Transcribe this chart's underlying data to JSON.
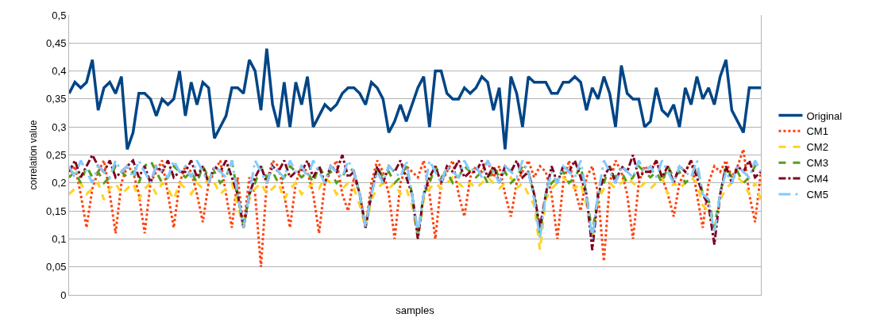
{
  "chart_data": {
    "type": "line",
    "xlabel": "samples",
    "ylabel": "correlation value",
    "categories": [
      null,
      null,
      null,
      null,
      null,
      null,
      null,
      null,
      null,
      null,
      null,
      null,
      null,
      null,
      null,
      null,
      null,
      null,
      null,
      null,
      null,
      null,
      null,
      null,
      null,
      null,
      null,
      null,
      null,
      null,
      null,
      null,
      null,
      null,
      null,
      null,
      null,
      null,
      null,
      null,
      null,
      null,
      null,
      null,
      null,
      null,
      null,
      null,
      null,
      null,
      null,
      null,
      null,
      null,
      null,
      null,
      null,
      null,
      null,
      null,
      null,
      null,
      null,
      null,
      null,
      null,
      null,
      null,
      null,
      null,
      null,
      null,
      null,
      null,
      null,
      null,
      null,
      null,
      null,
      null,
      null,
      null,
      null,
      null,
      null,
      null,
      null,
      null,
      null,
      null,
      null,
      null,
      null,
      null,
      null,
      null,
      null,
      null,
      null,
      null,
      null,
      null,
      null,
      null,
      null,
      null,
      null,
      null,
      null,
      null,
      null,
      null,
      null,
      null,
      null,
      null,
      null,
      null,
      null,
      null
    ],
    "ylim": [
      0,
      0.5
    ],
    "yticks": [
      0,
      {
        "value": 0.05,
        "label": "0,05"
      },
      {
        "value": 0.1,
        "label": "0,1"
      },
      {
        "value": 0.15,
        "label": "0,15"
      },
      {
        "value": 0.2,
        "label": "0,2"
      },
      {
        "value": 0.25,
        "label": "0,25"
      },
      {
        "value": 0.3,
        "label": "0,3"
      },
      {
        "value": 0.35,
        "label": "0,35"
      },
      {
        "value": 0.4,
        "label": "0,4"
      },
      {
        "value": 0.45,
        "label": "0,45"
      },
      {
        "value": 0.5,
        "label": "0,5"
      }
    ],
    "grid": "y",
    "legend": "right",
    "marker": "none",
    "series": [
      {
        "name": "Original",
        "color": "#004586",
        "line_style": "solid",
        "values": [
          0.36,
          0.38,
          0.37,
          0.38,
          0.42,
          0.33,
          0.37,
          0.38,
          0.36,
          0.39,
          0.26,
          0.29,
          0.36,
          0.36,
          0.35,
          0.32,
          0.35,
          0.34,
          0.35,
          0.4,
          0.32,
          0.38,
          0.34,
          0.38,
          0.37,
          0.28,
          0.3,
          0.32,
          0.37,
          0.37,
          0.36,
          0.42,
          0.4,
          0.33,
          0.44,
          0.34,
          0.3,
          0.38,
          0.3,
          0.38,
          0.34,
          0.39,
          0.3,
          0.32,
          0.34,
          0.33,
          0.34,
          0.36,
          0.37,
          0.37,
          0.36,
          0.34,
          0.38,
          0.37,
          0.35,
          0.29,
          0.31,
          0.34,
          0.31,
          0.34,
          0.37,
          0.39,
          0.3,
          0.4,
          0.4,
          0.36,
          0.35,
          0.35,
          0.37,
          0.36,
          0.37,
          0.39,
          0.38,
          0.33,
          0.37,
          0.26,
          0.39,
          0.36,
          0.3,
          0.39,
          0.38,
          0.38,
          0.38,
          0.36,
          0.36,
          0.38,
          0.38,
          0.39,
          0.38,
          0.33,
          0.37,
          0.35,
          0.39,
          0.36,
          0.3,
          0.41,
          0.36,
          0.35,
          0.35,
          0.3,
          0.31,
          0.37,
          0.33,
          0.32,
          0.34,
          0.3,
          0.37,
          0.34,
          0.39,
          0.35,
          0.37,
          0.34,
          0.39,
          0.42,
          0.33,
          0.31,
          0.29,
          0.37,
          0.37,
          0.37
        ]
      },
      {
        "name": "CM1",
        "color": "#ff420e",
        "line_style": "dotted",
        "values": [
          0.21,
          0.23,
          0.18,
          0.12,
          0.19,
          0.22,
          0.24,
          0.18,
          0.11,
          0.2,
          0.23,
          0.22,
          0.18,
          0.11,
          0.2,
          0.22,
          0.24,
          0.18,
          0.12,
          0.2,
          0.23,
          0.22,
          0.18,
          0.13,
          0.2,
          0.22,
          0.24,
          0.18,
          0.12,
          0.21,
          0.12,
          0.21,
          0.18,
          0.05,
          0.2,
          0.24,
          0.23,
          0.18,
          0.12,
          0.2,
          0.23,
          0.22,
          0.18,
          0.11,
          0.2,
          0.22,
          0.24,
          0.18,
          0.15,
          0.21,
          0.18,
          0.12,
          0.2,
          0.24,
          0.22,
          0.18,
          0.1,
          0.2,
          0.23,
          0.22,
          0.21,
          0.24,
          0.18,
          0.1,
          0.2,
          0.22,
          0.24,
          0.18,
          0.14,
          0.21,
          0.23,
          0.22,
          0.24,
          0.21,
          0.23,
          0.18,
          0.14,
          0.2,
          0.22,
          0.24,
          0.21,
          0.23,
          0.22,
          0.18,
          0.1,
          0.2,
          0.24,
          0.19,
          0.15,
          0.21,
          0.23,
          0.18,
          0.06,
          0.2,
          0.24,
          0.22,
          0.18,
          0.1,
          0.2,
          0.23,
          0.22,
          0.24,
          0.21,
          0.18,
          0.14,
          0.2,
          0.22,
          0.24,
          0.18,
          0.12,
          0.2,
          0.23,
          0.22,
          0.24,
          0.21,
          0.23,
          0.26,
          0.18,
          0.13,
          0.22
        ]
      },
      {
        "name": "CM2",
        "color": "#ffd320",
        "line_style": "dashed",
        "values": [
          0.18,
          0.19,
          0.2,
          0.18,
          0.19,
          0.2,
          0.17,
          0.19,
          0.2,
          0.18,
          0.19,
          0.2,
          0.17,
          0.19,
          0.2,
          0.18,
          0.2,
          0.19,
          0.17,
          0.2,
          0.19,
          0.18,
          0.2,
          0.19,
          0.21,
          0.2,
          0.18,
          0.19,
          0.2,
          0.16,
          0.12,
          0.17,
          0.19,
          0.2,
          0.18,
          0.19,
          0.2,
          0.17,
          0.19,
          0.2,
          0.18,
          0.19,
          0.2,
          0.19,
          0.21,
          0.2,
          0.18,
          0.19,
          0.2,
          0.19,
          0.16,
          0.12,
          0.17,
          0.19,
          0.2,
          0.19,
          0.2,
          0.18,
          0.19,
          0.16,
          0.1,
          0.17,
          0.19,
          0.2,
          0.19,
          0.2,
          0.21,
          0.2,
          0.19,
          0.2,
          0.19,
          0.2,
          0.21,
          0.2,
          0.19,
          0.2,
          0.21,
          0.19,
          0.2,
          0.18,
          0.16,
          0.08,
          0.17,
          0.19,
          0.2,
          0.21,
          0.2,
          0.19,
          0.2,
          0.16,
          0.1,
          0.17,
          0.19,
          0.2,
          0.19,
          0.2,
          0.21,
          0.2,
          0.19,
          0.2,
          0.19,
          0.2,
          0.21,
          0.18,
          0.2,
          0.19,
          0.2,
          0.21,
          0.2,
          0.16,
          0.15,
          0.12,
          0.17,
          0.19,
          0.2,
          0.21,
          0.2,
          0.18,
          0.2,
          0.17
        ]
      },
      {
        "name": "CM3",
        "color": "#579d1c",
        "line_style": "dashed",
        "values": [
          0.21,
          0.22,
          0.2,
          0.23,
          0.21,
          0.22,
          0.2,
          0.21,
          0.23,
          0.22,
          0.21,
          0.22,
          0.2,
          0.23,
          0.24,
          0.22,
          0.2,
          0.21,
          0.23,
          0.22,
          0.21,
          0.22,
          0.2,
          0.23,
          0.21,
          0.22,
          0.2,
          0.21,
          0.24,
          0.18,
          0.12,
          0.18,
          0.2,
          0.23,
          0.21,
          0.22,
          0.2,
          0.21,
          0.23,
          0.22,
          0.21,
          0.22,
          0.2,
          0.23,
          0.21,
          0.22,
          0.2,
          0.21,
          0.23,
          0.22,
          0.18,
          0.12,
          0.18,
          0.23,
          0.21,
          0.22,
          0.2,
          0.21,
          0.23,
          0.18,
          0.11,
          0.18,
          0.2,
          0.23,
          0.21,
          0.22,
          0.2,
          0.21,
          0.23,
          0.22,
          0.21,
          0.22,
          0.2,
          0.23,
          0.21,
          0.22,
          0.2,
          0.21,
          0.23,
          0.22,
          0.18,
          0.11,
          0.18,
          0.2,
          0.21,
          0.22,
          0.2,
          0.21,
          0.23,
          0.18,
          0.11,
          0.18,
          0.2,
          0.23,
          0.21,
          0.22,
          0.2,
          0.21,
          0.23,
          0.22,
          0.21,
          0.22,
          0.2,
          0.23,
          0.21,
          0.22,
          0.2,
          0.21,
          0.23,
          0.18,
          0.17,
          0.12,
          0.18,
          0.23,
          0.21,
          0.22,
          0.2,
          0.21,
          0.23,
          0.22
        ]
      },
      {
        "name": "CM4",
        "color": "#7e0021",
        "line_style": "dashed",
        "values": [
          0.22,
          0.24,
          0.21,
          0.23,
          0.25,
          0.23,
          0.22,
          0.24,
          0.21,
          0.22,
          0.23,
          0.24,
          0.21,
          0.23,
          0.2,
          0.23,
          0.22,
          0.24,
          0.21,
          0.22,
          0.22,
          0.24,
          0.21,
          0.23,
          0.2,
          0.23,
          0.22,
          0.24,
          0.21,
          0.18,
          0.12,
          0.18,
          0.21,
          0.23,
          0.2,
          0.23,
          0.22,
          0.24,
          0.21,
          0.22,
          0.22,
          0.24,
          0.21,
          0.23,
          0.2,
          0.23,
          0.22,
          0.25,
          0.21,
          0.22,
          0.18,
          0.12,
          0.18,
          0.23,
          0.2,
          0.23,
          0.22,
          0.24,
          0.21,
          0.18,
          0.1,
          0.18,
          0.21,
          0.23,
          0.2,
          0.23,
          0.22,
          0.24,
          0.21,
          0.22,
          0.22,
          0.24,
          0.21,
          0.23,
          0.2,
          0.23,
          0.22,
          0.24,
          0.21,
          0.22,
          0.18,
          0.12,
          0.18,
          0.23,
          0.2,
          0.23,
          0.22,
          0.24,
          0.21,
          0.18,
          0.08,
          0.18,
          0.21,
          0.23,
          0.2,
          0.23,
          0.22,
          0.25,
          0.21,
          0.22,
          0.22,
          0.24,
          0.21,
          0.23,
          0.2,
          0.23,
          0.22,
          0.24,
          0.21,
          0.18,
          0.16,
          0.09,
          0.18,
          0.23,
          0.2,
          0.23,
          0.22,
          0.24,
          0.21,
          0.22
        ]
      },
      {
        "name": "CM5",
        "color": "#83caff",
        "line_style": "dashed",
        "values": [
          0.23,
          0.21,
          0.24,
          0.22,
          0.2,
          0.23,
          0.22,
          0.21,
          0.24,
          0.22,
          0.23,
          0.21,
          0.24,
          0.22,
          0.2,
          0.23,
          0.22,
          0.21,
          0.24,
          0.22,
          0.23,
          0.21,
          0.24,
          0.22,
          0.2,
          0.23,
          0.22,
          0.21,
          0.24,
          0.18,
          0.12,
          0.18,
          0.24,
          0.22,
          0.2,
          0.23,
          0.22,
          0.21,
          0.24,
          0.22,
          0.23,
          0.21,
          0.24,
          0.22,
          0.2,
          0.23,
          0.22,
          0.21,
          0.24,
          0.22,
          0.18,
          0.12,
          0.18,
          0.22,
          0.2,
          0.23,
          0.22,
          0.21,
          0.24,
          0.18,
          0.11,
          0.18,
          0.24,
          0.22,
          0.2,
          0.23,
          0.22,
          0.21,
          0.24,
          0.22,
          0.23,
          0.21,
          0.24,
          0.22,
          0.2,
          0.23,
          0.22,
          0.21,
          0.24,
          0.22,
          0.17,
          0.1,
          0.18,
          0.22,
          0.2,
          0.23,
          0.22,
          0.21,
          0.24,
          0.18,
          0.1,
          0.18,
          0.24,
          0.22,
          0.2,
          0.23,
          0.22,
          0.21,
          0.24,
          0.22,
          0.23,
          0.21,
          0.24,
          0.22,
          0.2,
          0.23,
          0.22,
          0.21,
          0.24,
          0.18,
          0.17,
          0.11,
          0.18,
          0.22,
          0.2,
          0.23,
          0.22,
          0.21,
          0.24,
          0.22
        ]
      }
    ]
  }
}
